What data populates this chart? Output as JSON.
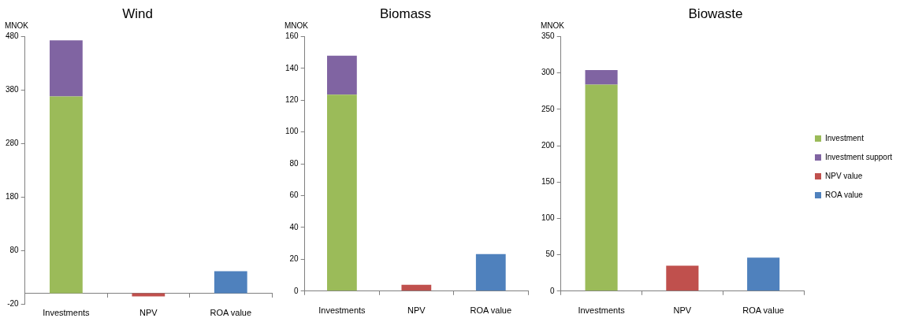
{
  "chart_data": [
    {
      "type": "bar",
      "title": "Wind",
      "ylabel": "MNOK",
      "categories": [
        "Investments",
        "NPV",
        "ROA value"
      ],
      "stacked": true,
      "ylim": [
        -20,
        480
      ],
      "yticks": [
        -20,
        80,
        180,
        280,
        380,
        480
      ],
      "grid": false,
      "legend": false,
      "series": [
        {
          "color": "#9bbb59",
          "values": [
            368,
            null,
            null
          ]
        },
        {
          "color": "#8064a2",
          "values": [
            105,
            null,
            null
          ]
        },
        {
          "color": "#c0504d",
          "values": [
            null,
            -6,
            null
          ]
        },
        {
          "color": "#4f81bd",
          "values": [
            null,
            null,
            41
          ]
        }
      ]
    },
    {
      "type": "bar",
      "title": "Biomass",
      "ylabel": "MNOK",
      "categories": [
        "Investments",
        "NPV",
        "ROA value"
      ],
      "stacked": true,
      "ylim": [
        0,
        160
      ],
      "yticks": [
        0,
        20,
        40,
        60,
        80,
        100,
        120,
        140,
        160
      ],
      "grid": false,
      "legend": false,
      "series": [
        {
          "color": "#9bbb59",
          "values": [
            123.5,
            null,
            null
          ]
        },
        {
          "color": "#8064a2",
          "values": [
            24.5,
            null,
            null
          ]
        },
        {
          "color": "#c0504d",
          "values": [
            null,
            4,
            null
          ]
        },
        {
          "color": "#4f81bd",
          "values": [
            null,
            null,
            23.3
          ]
        }
      ]
    },
    {
      "type": "bar",
      "title": "Biowaste",
      "ylabel": "MNOK",
      "categories": [
        "Investments",
        "NPV",
        "ROA value"
      ],
      "stacked": true,
      "ylim": [
        0,
        350
      ],
      "yticks": [
        0,
        50,
        100,
        150,
        200,
        250,
        300,
        350
      ],
      "grid": false,
      "legend": "right",
      "series": [
        {
          "name": "Investment",
          "color": "#9bbb59",
          "values": [
            284,
            null,
            null
          ]
        },
        {
          "name": "Investment support",
          "color": "#8064a2",
          "values": [
            20,
            null,
            null
          ]
        },
        {
          "name": "NPV value",
          "color": "#c0504d",
          "values": [
            null,
            35,
            null
          ]
        },
        {
          "name": "ROA value",
          "color": "#4f81bd",
          "values": [
            null,
            null,
            46
          ]
        }
      ]
    }
  ]
}
